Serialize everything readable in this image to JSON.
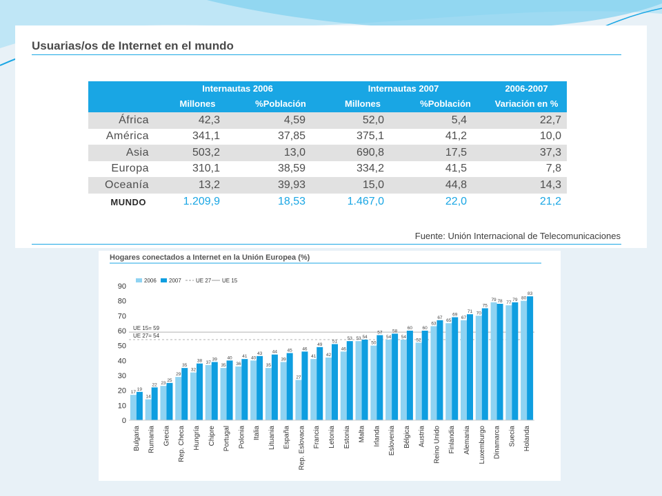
{
  "page": {
    "title": "Usuarias/os de Internet en el mundo",
    "source": "Fuente: Unión Internacional de Telecomunicaciones"
  },
  "colors": {
    "accent": "#19a6e4",
    "bar2006": "#8fd3f2",
    "bar2007": "#0f9ee0",
    "shade": "#e1e1e1"
  },
  "table": {
    "group_headers": [
      "Internautas 2006",
      "Internautas 2007",
      "2006-2007"
    ],
    "sub_headers": [
      "Millones",
      "%Población",
      "Millones",
      "%Población",
      "Variación en %"
    ],
    "rows": [
      {
        "name": "África",
        "m2006": "42,3",
        "p2006": "4,59",
        "m2007": "52,0",
        "p2007": "5,4",
        "var": "22,7"
      },
      {
        "name": "América",
        "m2006": "341,1",
        "p2006": "37,85",
        "m2007": "375,1",
        "p2007": "41,2",
        "var": "10,0"
      },
      {
        "name": "Asia",
        "m2006": "503,2",
        "p2006": "13,0",
        "m2007": "690,8",
        "p2007": "17,5",
        "var": "37,3"
      },
      {
        "name": "Europa",
        "m2006": "310,1",
        "p2006": "38,59",
        "m2007": "334,2",
        "p2007": "41,5",
        "var": "7,8"
      },
      {
        "name": "Oceanía",
        "m2006": "13,2",
        "p2006": "39,93",
        "m2007": "15,0",
        "p2007": "44,8",
        "var": "14,3"
      }
    ],
    "total": {
      "name": "MUNDO",
      "m2006": "1.209,9",
      "p2006": "18,53",
      "m2007": "1.467,0",
      "p2007": "22,0",
      "var": "21,2"
    }
  },
  "chart_data": {
    "type": "bar",
    "title": "Hogares conectados a Internet en la Unión Europea (%)",
    "categories": [
      "Bulgaria",
      "Rumania",
      "Grecia",
      "Rep. Checa",
      "Hungría",
      "Chipre",
      "Portugal",
      "Polonia",
      "Italia",
      "Lituania",
      "España",
      "Rep. Eslovaca",
      "Francia",
      "Letonia",
      "Estonia",
      "Malta",
      "Irlanda",
      "Eslovenia",
      "Bélgica",
      "Austria",
      "Reino Unido",
      "Finlandia",
      "Alemania",
      "Luxemburgo",
      "Dinamarca",
      "Suecia",
      "Holanda"
    ],
    "series": [
      {
        "name": "2006",
        "values": [
          17,
          14,
          23,
          29,
          32,
          37,
          35,
          36,
          40,
          35,
          39,
          27,
          41,
          42,
          46,
          53,
          50,
          54,
          54,
          52,
          63,
          65,
          67,
          70,
          79,
          77,
          80
        ]
      },
      {
        "name": "2007",
        "values": [
          19,
          22,
          25,
          35,
          38,
          39,
          40,
          41,
          43,
          44,
          45,
          46,
          49,
          51,
          53,
          54,
          57,
          58,
          60,
          60,
          67,
          69,
          71,
          75,
          78,
          79,
          83
        ]
      }
    ],
    "legend": [
      "2006",
      "2007",
      "UE 27",
      "UE 15"
    ],
    "reference_lines": [
      {
        "name": "UE 15",
        "label": "UE 15= 59",
        "value": 59
      },
      {
        "name": "UE 27",
        "label": "UE 27= 54",
        "value": 54
      }
    ],
    "yticks": [
      0,
      10,
      20,
      30,
      40,
      50,
      60,
      70,
      80,
      90
    ],
    "ylim": [
      0,
      90
    ],
    "legend_position": "top-left",
    "grid": false
  }
}
